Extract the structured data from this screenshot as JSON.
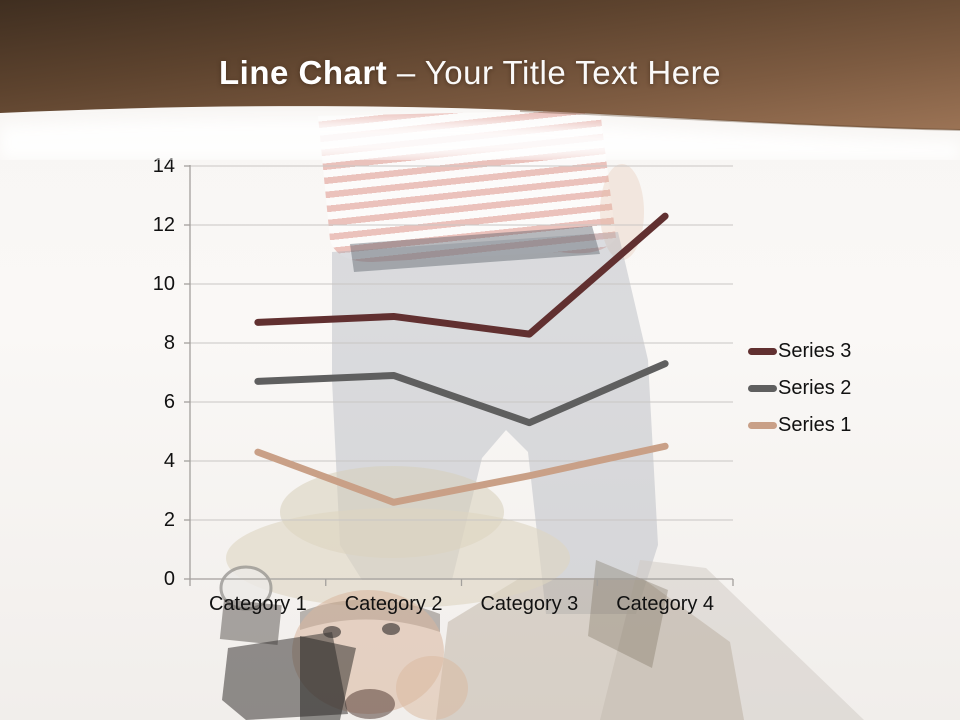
{
  "header": {
    "title_bold": "Line Chart",
    "title_rest": "– Your Title Text Here",
    "band_color_dark": "#41301f",
    "band_color_light": "#96704f"
  },
  "chart_data": {
    "type": "line",
    "title": "",
    "xlabel": "",
    "ylabel": "",
    "categories": [
      "Category 1",
      "Category 2",
      "Category 3",
      "Category 4"
    ],
    "series": [
      {
        "name": "Series 3",
        "color": "#613030",
        "values": [
          8.7,
          8.9,
          8.3,
          12.3
        ]
      },
      {
        "name": "Series 2",
        "color": "#5f5f5f",
        "values": [
          6.7,
          6.9,
          5.3,
          7.3
        ]
      },
      {
        "name": "Series 1",
        "color": "#c9a087",
        "values": [
          4.3,
          2.6,
          3.5,
          4.5
        ]
      }
    ],
    "ylim": [
      0,
      14
    ],
    "yticks": [
      0,
      2,
      4,
      6,
      8,
      10,
      12,
      14
    ],
    "grid": true,
    "legend_position": "right",
    "grid_color": "#c9c6c4",
    "axis_color": "#a3a09d"
  }
}
